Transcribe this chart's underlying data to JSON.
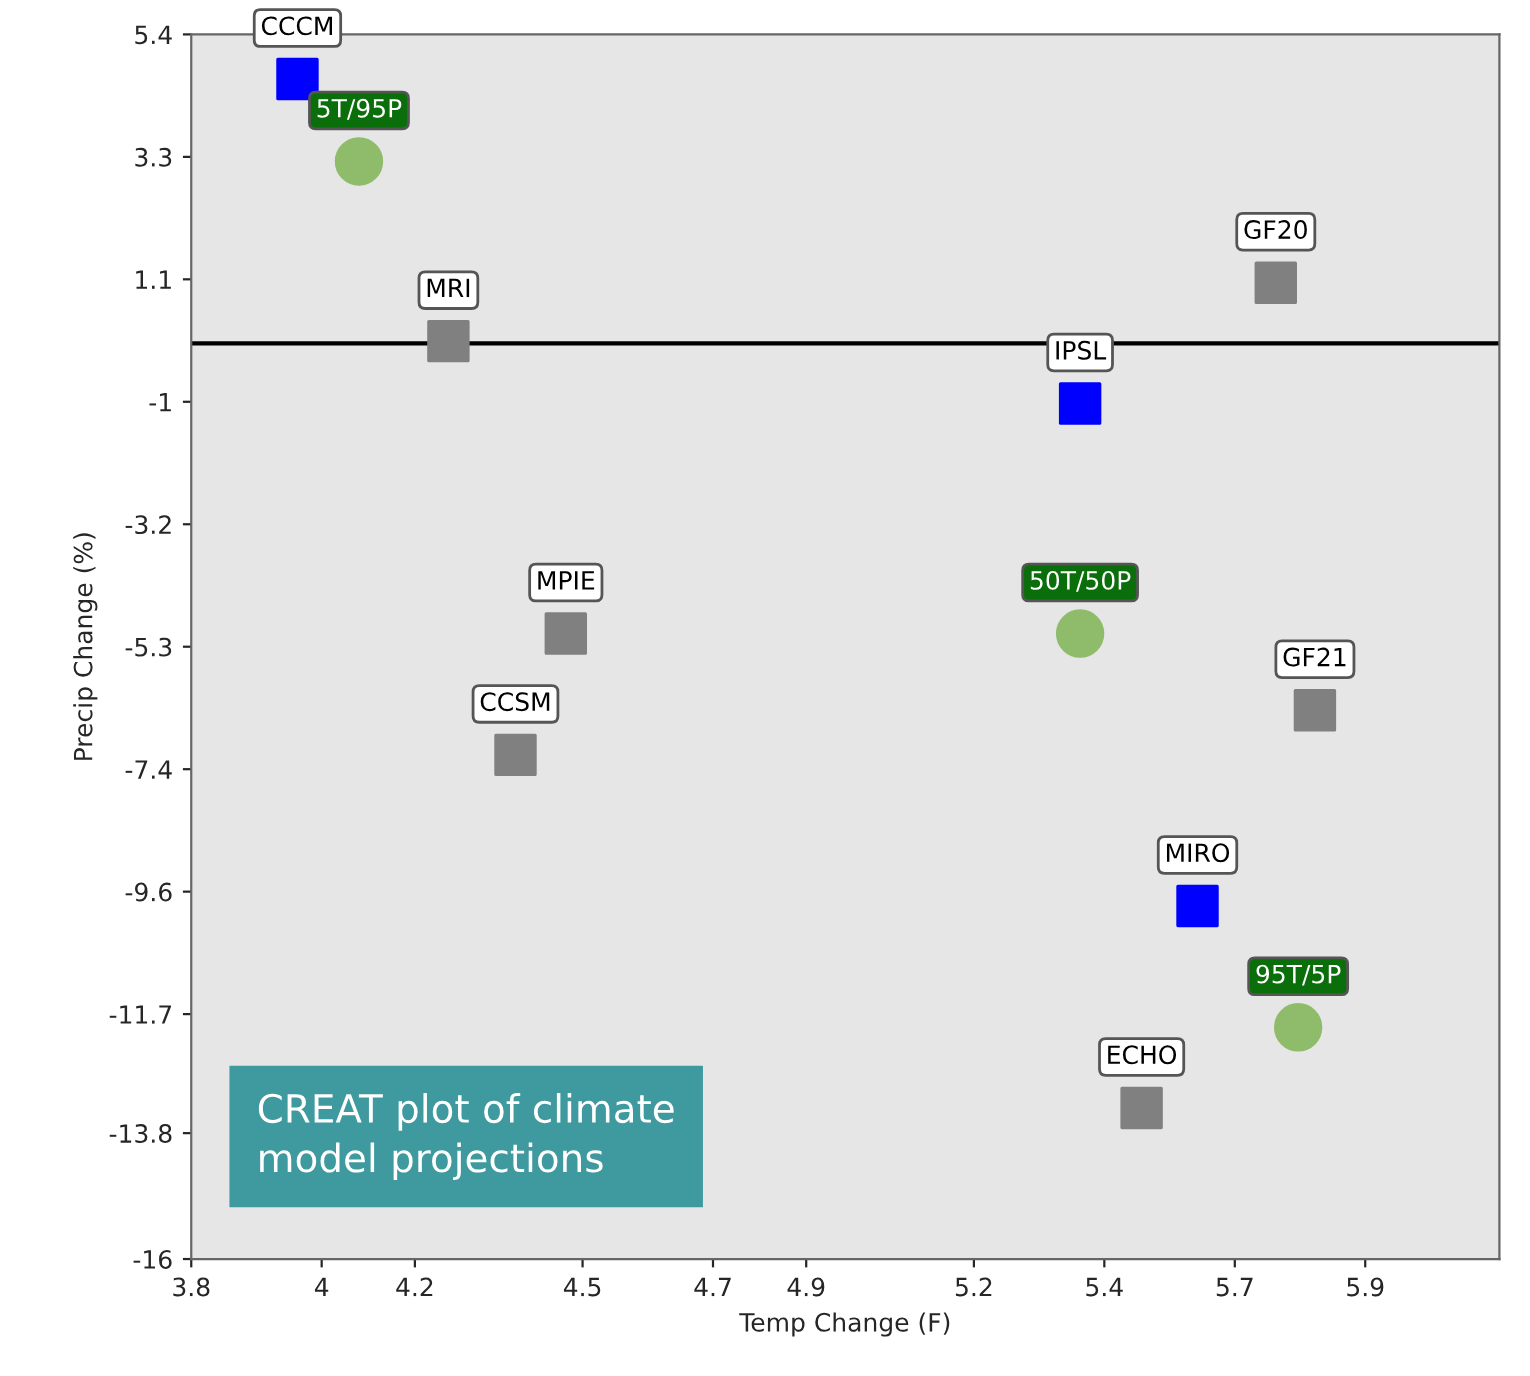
{
  "chart_data": {
    "type": "scatter",
    "xlabel": "Temp Change (F)",
    "ylabel": "Precip Change (%)",
    "xlim": [
      3.8,
      6.14
    ],
    "ylim": [
      -16,
      5.4
    ],
    "xticks": [
      {
        "value": 3.8,
        "label": "3.8"
      },
      {
        "value": 4.0333,
        "label": "4"
      },
      {
        "value": 4.2,
        "label": "4.2"
      },
      {
        "value": 4.5,
        "label": "4.5"
      },
      {
        "value": 4.7333,
        "label": "4.7"
      },
      {
        "value": 4.9,
        "label": "4.9"
      },
      {
        "value": 5.2,
        "label": "5.2"
      },
      {
        "value": 5.4333,
        "label": "5.4"
      },
      {
        "value": 5.6667,
        "label": "5.7"
      },
      {
        "value": 5.9,
        "label": "5.9"
      }
    ],
    "yticks": [
      {
        "value": 5.4,
        "label": "5.4"
      },
      {
        "value": 3.26,
        "label": "3.3"
      },
      {
        "value": 1.12,
        "label": "1.1"
      },
      {
        "value": -1.02,
        "label": "-1"
      },
      {
        "value": -3.16,
        "label": "-3.2"
      },
      {
        "value": -5.3,
        "label": "-5.3"
      },
      {
        "value": -7.44,
        "label": "-7.4"
      },
      {
        "value": -9.58,
        "label": "-9.6"
      },
      {
        "value": -11.72,
        "label": "-11.7"
      },
      {
        "value": -13.8,
        "label": "-13.8"
      },
      {
        "value": -16,
        "label": "-16"
      }
    ],
    "grid": false,
    "legend": false,
    "ref_lines": [
      {
        "axis": "y",
        "value": 0,
        "color": "#000000"
      }
    ],
    "series": [
      {
        "color": "#808080",
        "marker": "square",
        "x": [
          4.26,
          5.74,
          4.47,
          5.81,
          4.38,
          5.5
        ],
        "values": [
          0.04,
          1.06,
          -5.07,
          -6.41,
          -7.19,
          -13.36
        ]
      },
      {
        "color": "#0000ff",
        "marker": "square",
        "x": [
          3.99,
          5.39,
          5.6
        ],
        "values": [
          4.62,
          -1.05,
          -9.83
        ]
      },
      {
        "color": "#8fbc6a",
        "marker": "circle",
        "x": [
          4.1,
          5.39,
          5.78
        ],
        "values": [
          3.18,
          -5.07,
          -11.95
        ]
      }
    ],
    "annotations": [
      {
        "text": "CCCM",
        "x": 3.99,
        "y": 4.62
      },
      {
        "text": "5T/95P",
        "x": 4.1,
        "y": 3.18
      },
      {
        "text": "MRI",
        "x": 4.26,
        "y": 0.04
      },
      {
        "text": "GF20",
        "x": 5.74,
        "y": 1.06
      },
      {
        "text": "IPSL",
        "x": 5.39,
        "y": -1.05
      },
      {
        "text": "MPIE",
        "x": 4.47,
        "y": -5.07
      },
      {
        "text": "50T/50P",
        "x": 5.39,
        "y": -5.07
      },
      {
        "text": "GF21",
        "x": 5.81,
        "y": -6.41
      },
      {
        "text": "CCSM",
        "x": 4.38,
        "y": -7.19
      },
      {
        "text": "MIRO",
        "x": 5.6,
        "y": -9.83
      },
      {
        "text": "95T/5P",
        "x": 5.78,
        "y": -11.95
      },
      {
        "text": "ECHO",
        "x": 5.5,
        "y": -13.36
      },
      "CREAT plot of climate\nmodel projections"
    ]
  }
}
